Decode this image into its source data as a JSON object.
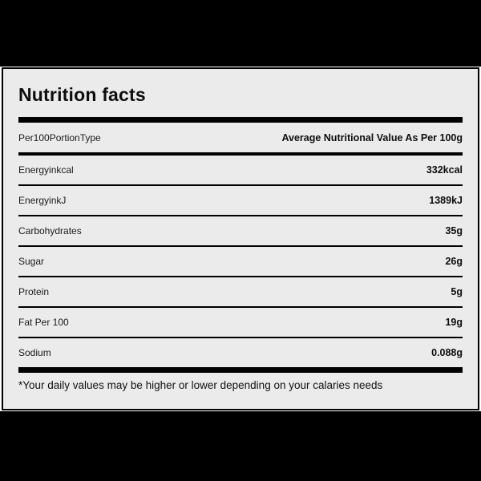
{
  "label": {
    "title": "Nutrition facts",
    "header": {
      "left": "Per100PortionType",
      "right": "Average Nutritional Value As Per 100g"
    },
    "rows": [
      {
        "name": "Energyinkcal",
        "value": "332kcal"
      },
      {
        "name": "EnergyinkJ",
        "value": "1389kJ"
      },
      {
        "name": "Carbohydrates",
        "value": "35g"
      },
      {
        "name": "Sugar",
        "value": "26g"
      },
      {
        "name": "Protein",
        "value": "5g"
      },
      {
        "name": "Fat Per 100",
        "value": "19g"
      },
      {
        "name": "Sodium",
        "value": "0.088g"
      }
    ],
    "footnote": "*Your daily values may be higher or lower depending on your calaries needs",
    "colors": {
      "panel_background": "#ebebeb",
      "frame_and_bars": "#000000",
      "text": "#111111"
    }
  }
}
